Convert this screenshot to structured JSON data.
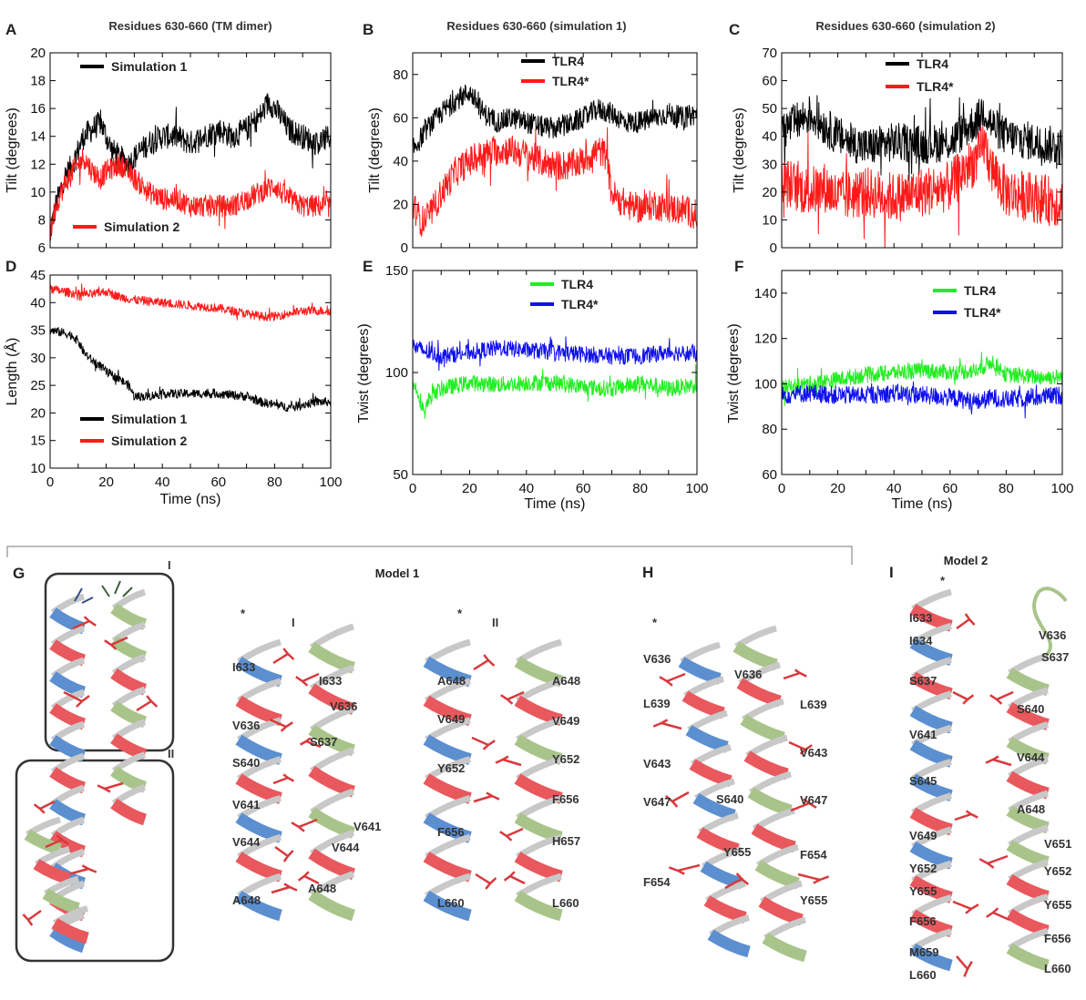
{
  "colors": {
    "black": "#000000",
    "red": "#ff1a1a",
    "green": "#22ee22",
    "blue": "#1010ee",
    "helix_blue": "#5b8fd0",
    "helix_green": "#a9c48a",
    "helix_red": "#e8585d",
    "helix_gray": "#c8c8c8",
    "side_chain": "#d8393c"
  },
  "chart_data": [
    {
      "id": "A",
      "type": "line",
      "panel_label": "A",
      "title": "Residues 630-660 (TM dimer)",
      "xlabel": "",
      "ylabel": "Tilt (degrees)",
      "xlim": [
        0,
        100
      ],
      "ylim": [
        6,
        20
      ],
      "xticks": [],
      "yticks": [
        6,
        8,
        10,
        12,
        14,
        16,
        18,
        20
      ],
      "series": [
        {
          "name": "Simulation 1",
          "color": "#000000",
          "noise": 0.9,
          "x": [
            0,
            2,
            5,
            8,
            10,
            12,
            15,
            18,
            20,
            22,
            25,
            28,
            30,
            35,
            40,
            45,
            50,
            55,
            60,
            65,
            70,
            75,
            78,
            80,
            82,
            85,
            90,
            95,
            100
          ],
          "y": [
            7,
            9,
            11,
            12,
            13,
            14,
            14.5,
            15,
            14,
            13,
            12.5,
            12,
            12.5,
            13.5,
            14,
            14,
            13.5,
            14,
            14.5,
            14,
            14.5,
            15.5,
            16.5,
            16,
            15.5,
            14.5,
            14,
            13.5,
            14
          ]
        },
        {
          "name": "Simulation 2",
          "color": "#ff1a1a",
          "noise": 0.8,
          "x": [
            0,
            2,
            5,
            8,
            10,
            12,
            15,
            18,
            20,
            25,
            30,
            35,
            40,
            45,
            50,
            55,
            60,
            65,
            70,
            75,
            80,
            82,
            85,
            90,
            95,
            100
          ],
          "y": [
            7,
            9,
            10.5,
            11.5,
            12,
            12.5,
            11.5,
            11,
            11.5,
            12,
            11,
            10,
            9.5,
            9.5,
            9,
            9,
            9,
            9,
            9.5,
            10,
            10.5,
            10,
            9.5,
            9,
            9,
            9
          ]
        }
      ],
      "legend": [
        {
          "name": "Simulation 1",
          "color": "#000000",
          "pos": "top-left"
        },
        {
          "name": "Simulation 2",
          "color": "#ff1a1a",
          "pos": "bottom-left"
        }
      ]
    },
    {
      "id": "B",
      "type": "line",
      "panel_label": "B",
      "title": "Residues 630-660 (simulation 1)",
      "xlabel": "",
      "ylabel": "Tilt (degrees)",
      "xlim": [
        0,
        100
      ],
      "ylim": [
        0,
        90
      ],
      "xticks": [],
      "yticks": [
        0,
        20,
        40,
        60,
        80
      ],
      "series": [
        {
          "name": "TLR4",
          "color": "#000000",
          "noise": 5,
          "x": [
            0,
            5,
            10,
            15,
            20,
            25,
            30,
            35,
            40,
            45,
            50,
            55,
            60,
            65,
            70,
            75,
            80,
            85,
            90,
            95,
            100
          ],
          "y": [
            45,
            55,
            62,
            68,
            72,
            62,
            58,
            60,
            58,
            56,
            55,
            57,
            60,
            64,
            62,
            58,
            58,
            60,
            62,
            60,
            62
          ]
        },
        {
          "name": "TLR4*",
          "color": "#ff1a1a",
          "noise": 7,
          "x": [
            0,
            3,
            6,
            10,
            15,
            20,
            25,
            30,
            35,
            40,
            45,
            50,
            55,
            60,
            65,
            68,
            70,
            75,
            80,
            85,
            90,
            95,
            100
          ],
          "y": [
            20,
            12,
            15,
            25,
            35,
            40,
            43,
            45,
            45,
            43,
            40,
            38,
            38,
            40,
            45,
            43,
            25,
            20,
            18,
            20,
            18,
            18,
            15
          ]
        }
      ],
      "legend": [
        {
          "name": "TLR4",
          "color": "#000000",
          "pos": "top-center"
        },
        {
          "name": "TLR4*",
          "color": "#ff1a1a",
          "pos": "top-center"
        }
      ]
    },
    {
      "id": "C",
      "type": "line",
      "panel_label": "C",
      "title": "Residues 630-660 (simulation 2)",
      "xlabel": "",
      "ylabel": "Tilt (degrees)",
      "xlim": [
        0,
        100
      ],
      "ylim": [
        0,
        70
      ],
      "xticks": [],
      "yticks": [
        0,
        10,
        20,
        30,
        40,
        50,
        60,
        70
      ],
      "series": [
        {
          "name": "TLR4",
          "color": "#000000",
          "noise": 7,
          "x": [
            0,
            5,
            10,
            15,
            20,
            25,
            30,
            40,
            50,
            60,
            65,
            70,
            72,
            75,
            80,
            90,
            100
          ],
          "y": [
            42,
            45,
            48,
            44,
            40,
            38,
            36,
            38,
            37,
            38,
            42,
            46,
            50,
            44,
            40,
            38,
            36
          ]
        },
        {
          "name": "TLR4*",
          "color": "#ff1a1a",
          "noise": 9,
          "x": [
            0,
            5,
            10,
            15,
            20,
            30,
            40,
            50,
            60,
            65,
            70,
            72,
            75,
            80,
            90,
            100
          ],
          "y": [
            24,
            22,
            20,
            22,
            18,
            20,
            18,
            20,
            22,
            28,
            32,
            38,
            28,
            20,
            18,
            16
          ]
        }
      ],
      "legend": [
        {
          "name": "TLR4",
          "color": "#000000",
          "pos": "top-center"
        },
        {
          "name": "TLR4*",
          "color": "#ff1a1a",
          "pos": "top-center"
        }
      ]
    },
    {
      "id": "D",
      "type": "line",
      "panel_label": "D",
      "title": "",
      "xlabel": "Time (ns)",
      "ylabel": "Length (Å)",
      "xlim": [
        0,
        100
      ],
      "ylim": [
        10,
        45
      ],
      "xticks": [
        0,
        20,
        40,
        60,
        80,
        100
      ],
      "yticks": [
        10,
        15,
        20,
        25,
        30,
        35,
        40,
        45
      ],
      "series": [
        {
          "name": "Simulation 1",
          "color": "#000000",
          "noise": 0.8,
          "x": [
            0,
            5,
            8,
            10,
            12,
            15,
            18,
            20,
            25,
            28,
            30,
            35,
            40,
            50,
            60,
            70,
            75,
            80,
            85,
            90,
            95,
            100
          ],
          "y": [
            35,
            34.5,
            34,
            33,
            31,
            29.5,
            28.5,
            27.5,
            26,
            25,
            23,
            23,
            23.5,
            23.5,
            23.5,
            23,
            22,
            21.5,
            21,
            21.5,
            22,
            22
          ]
        },
        {
          "name": "Simulation 2",
          "color": "#ff1a1a",
          "noise": 0.8,
          "x": [
            0,
            5,
            10,
            15,
            20,
            25,
            30,
            40,
            50,
            60,
            70,
            75,
            80,
            90,
            100
          ],
          "y": [
            42.5,
            42,
            41.5,
            41.5,
            42,
            41,
            40.5,
            40,
            39.5,
            39,
            38,
            37.5,
            37.5,
            38.5,
            38.5
          ]
        }
      ],
      "legend": [
        {
          "name": "Simulation 1",
          "color": "#000000",
          "pos": "bottom-left"
        },
        {
          "name": "Simulation 2",
          "color": "#ff1a1a",
          "pos": "bottom-left"
        }
      ]
    },
    {
      "id": "E",
      "type": "line",
      "panel_label": "E",
      "title": "",
      "xlabel": "Time (ns)",
      "ylabel": "Twist (degrees)",
      "xlim": [
        0,
        100
      ],
      "ylim": [
        50,
        150
      ],
      "xticks": [
        0,
        20,
        40,
        60,
        80,
        100
      ],
      "yticks": [
        50,
        100,
        150
      ],
      "series": [
        {
          "name": "TLR4",
          "color": "#22ee22",
          "noise": 4,
          "x": [
            0,
            2,
            4,
            6,
            10,
            20,
            30,
            40,
            50,
            60,
            70,
            80,
            90,
            100
          ],
          "y": [
            95,
            90,
            80,
            88,
            92,
            95,
            94,
            95,
            95,
            93,
            92,
            95,
            92,
            94
          ]
        },
        {
          "name": "TLR4*",
          "color": "#1010ee",
          "noise": 4,
          "x": [
            0,
            5,
            10,
            20,
            30,
            40,
            50,
            60,
            70,
            80,
            90,
            100
          ],
          "y": [
            113,
            110,
            108,
            110,
            112,
            111,
            110,
            109,
            108,
            108,
            110,
            109
          ]
        }
      ],
      "legend": [
        {
          "name": "TLR4",
          "color": "#22ee22",
          "pos": "top-center"
        },
        {
          "name": "TLR4*",
          "color": "#1010ee",
          "pos": "top-center"
        }
      ]
    },
    {
      "id": "F",
      "type": "line",
      "panel_label": "F",
      "title": "",
      "xlabel": "Time (ns)",
      "ylabel": "Twist (degrees)",
      "xlim": [
        0,
        100
      ],
      "ylim": [
        60,
        150
      ],
      "xticks": [
        0,
        20,
        40,
        60,
        80,
        100
      ],
      "yticks": [
        60,
        80,
        100,
        120,
        140
      ],
      "series": [
        {
          "name": "TLR4",
          "color": "#22ee22",
          "noise": 3.5,
          "x": [
            0,
            10,
            20,
            30,
            40,
            50,
            60,
            70,
            75,
            80,
            90,
            100
          ],
          "y": [
            98,
            100,
            102,
            104,
            105,
            106,
            105,
            106,
            110,
            104,
            103,
            103
          ]
        },
        {
          "name": "TLR4*",
          "color": "#1010ee",
          "noise": 4,
          "x": [
            0,
            10,
            20,
            30,
            40,
            50,
            60,
            70,
            75,
            80,
            90,
            100
          ],
          "y": [
            95,
            96,
            95,
            95,
            96,
            95,
            94,
            92,
            94,
            93,
            94,
            95
          ]
        }
      ],
      "legend": [
        {
          "name": "TLR4",
          "color": "#22ee22",
          "pos": "top-center"
        },
        {
          "name": "TLR4*",
          "color": "#1010ee",
          "pos": "top-center"
        }
      ]
    }
  ],
  "structures": {
    "G": {
      "panel_label": "G",
      "box_labels": [
        "I",
        "II"
      ]
    },
    "model1": {
      "title": "Model 1",
      "sub_I": {
        "label": "I",
        "star": "*",
        "left": [
          "I633",
          "V636",
          "S640",
          "V641",
          "V644",
          "A648"
        ],
        "right": [
          "I633",
          "V636",
          "S637",
          "V641",
          "V644",
          "A648"
        ]
      },
      "sub_II": {
        "label": "II",
        "star": "*",
        "left": [
          "A648",
          "V649",
          "Y652",
          "F656",
          "L660"
        ],
        "right": [
          "A648",
          "V649",
          "Y652",
          "F656",
          "H657",
          "L660"
        ]
      }
    },
    "H": {
      "panel_label": "H",
      "star": "*",
      "left": [
        "V636",
        "L639",
        "V643",
        "V647",
        "F654"
      ],
      "middle": [
        "V636",
        "S640",
        "Y655"
      ],
      "right": [
        "L639",
        "V643",
        "V647",
        "F654",
        "Y655"
      ]
    },
    "I": {
      "panel_label": "I",
      "title": "Model  2",
      "star": "*",
      "left": [
        "I633",
        "I634",
        "S637",
        "V641",
        "S645",
        "V649",
        "Y652",
        "Y655",
        "F656",
        "M659",
        "L660"
      ],
      "right": [
        "V636",
        "S637",
        "S640",
        "V644",
        "A648",
        "V651",
        "Y652",
        "Y655",
        "F656",
        "L660"
      ]
    }
  }
}
